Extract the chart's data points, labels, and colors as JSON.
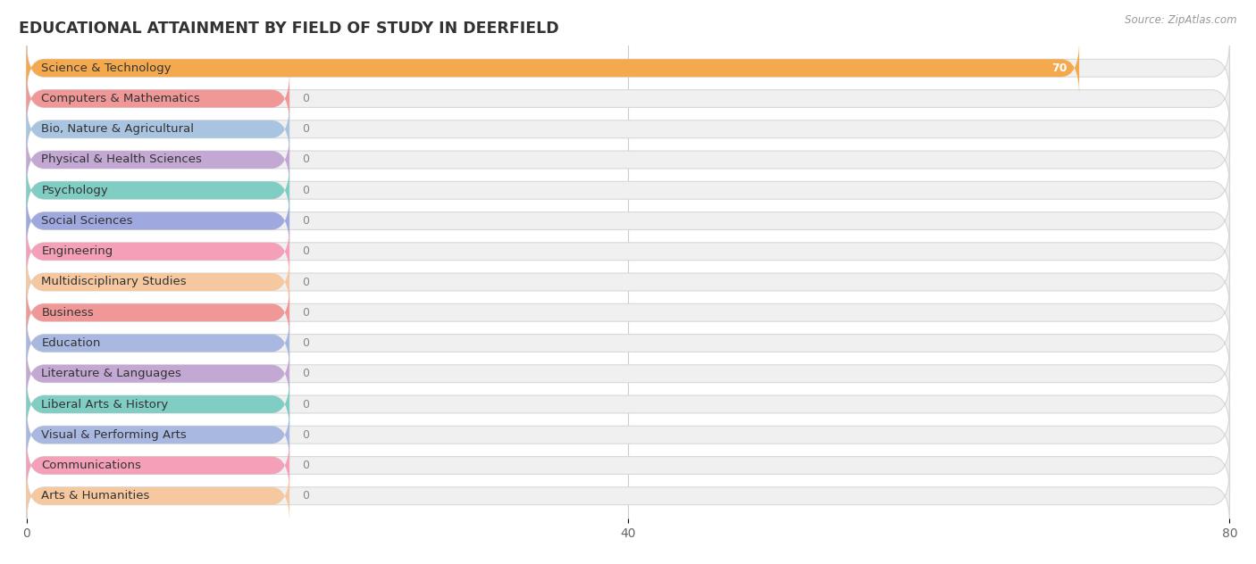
{
  "title": "EDUCATIONAL ATTAINMENT BY FIELD OF STUDY IN DEERFIELD",
  "source": "Source: ZipAtlas.com",
  "categories": [
    "Science & Technology",
    "Computers & Mathematics",
    "Bio, Nature & Agricultural",
    "Physical & Health Sciences",
    "Psychology",
    "Social Sciences",
    "Engineering",
    "Multidisciplinary Studies",
    "Business",
    "Education",
    "Literature & Languages",
    "Liberal Arts & History",
    "Visual & Performing Arts",
    "Communications",
    "Arts & Humanities"
  ],
  "values": [
    70,
    0,
    0,
    0,
    0,
    0,
    0,
    0,
    0,
    0,
    0,
    0,
    0,
    0,
    0
  ],
  "bar_colors": [
    "#f5a94e",
    "#f09898",
    "#a8c4e0",
    "#c4a8d4",
    "#80cdc4",
    "#a0a8e0",
    "#f4a0b8",
    "#f5c8a0",
    "#f09898",
    "#a8b8e0",
    "#c4a8d4",
    "#80cdc4",
    "#a8b8e0",
    "#f4a0b8",
    "#f5c8a0"
  ],
  "background_bar_color": "#f0f0f0",
  "background_bar_border": "#d8d8d8",
  "xlim": [
    0,
    80
  ],
  "xticks": [
    0,
    40,
    80
  ],
  "bar_height": 0.58,
  "label_bar_width": 17.5,
  "bg_color": "#ffffff",
  "grid_color": "#cccccc",
  "title_fontsize": 12.5,
  "label_fontsize": 9.5,
  "tick_fontsize": 10,
  "value_fontsize": 9
}
